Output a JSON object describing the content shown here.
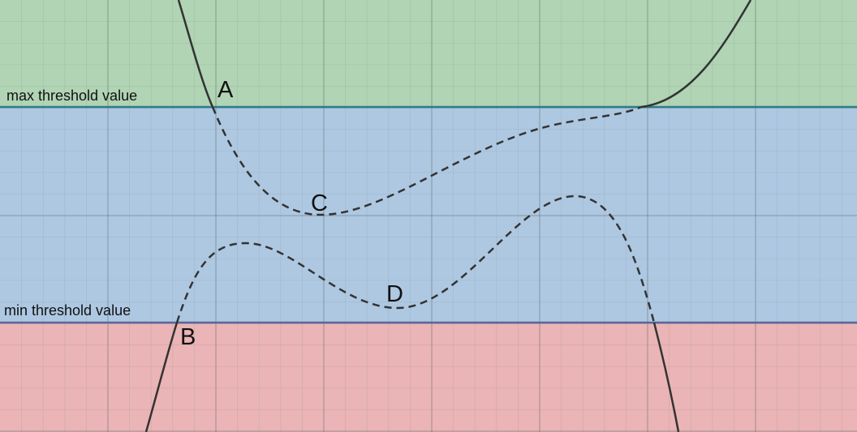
{
  "labels": {
    "max_threshold": "max threshold value",
    "min_threshold": "min threshold value",
    "points": [
      "A",
      "B",
      "C",
      "D"
    ]
  },
  "colors": {
    "above_max_zone": "#b0d4b4",
    "between_zone": "#aec8e2",
    "below_min_zone": "#ebb4b6",
    "max_line": "#2f7c88",
    "min_line": "#5a669c",
    "curve": "#333333",
    "grid_minor": "#8a9a8e",
    "grid_major": "#5f6e6c"
  }
}
